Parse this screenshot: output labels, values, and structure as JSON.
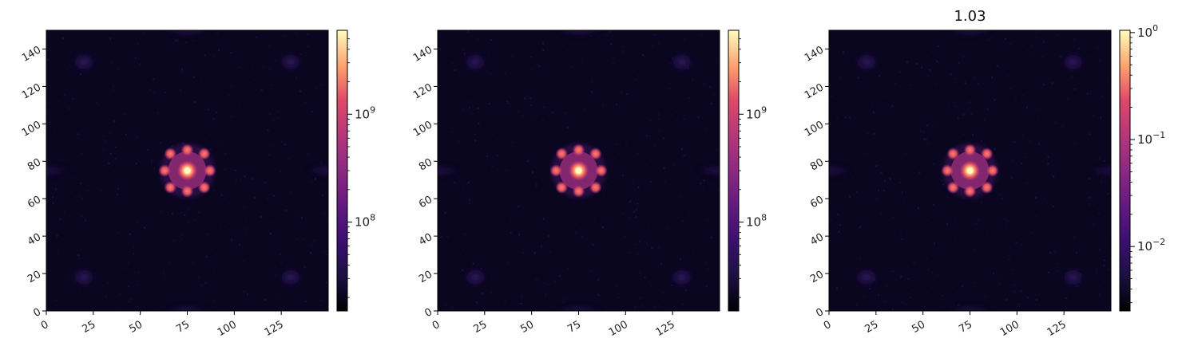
{
  "chart_data": [
    {
      "type": "heatmap",
      "title": "",
      "xlim": [
        0,
        150
      ],
      "ylim": [
        0,
        150
      ],
      "xticks": [
        0,
        25,
        50,
        75,
        100,
        125
      ],
      "xtick_labels": [
        "0",
        "25",
        "50",
        "75",
        "100",
        "125"
      ],
      "yticks": [
        0,
        20,
        40,
        60,
        80,
        100,
        120,
        140
      ],
      "ytick_labels": [
        "0",
        "20",
        "40",
        "60",
        "80",
        "100",
        "120",
        "140"
      ],
      "colormap": "magma",
      "colorbar": {
        "scale": "log",
        "range": [
          15000000,
          6000000000
        ],
        "major_ticks": [
          {
            "value": 100000000,
            "base": "10",
            "exp": "8"
          },
          {
            "value": 1000000000,
            "base": "10",
            "exp": "9"
          }
        ],
        "minor_ticks": [
          20000000,
          30000000,
          40000000,
          50000000,
          60000000,
          70000000,
          80000000,
          90000000,
          200000000,
          300000000,
          400000000,
          500000000,
          600000000,
          700000000,
          800000000,
          900000000,
          2000000000,
          3000000000,
          4000000000,
          5000000000
        ]
      },
      "features": {
        "center": [
          75,
          75
        ],
        "core_peak": "max",
        "ring_spots": [
          {
            "x": 66,
            "y": 84
          },
          {
            "x": 75,
            "y": 86
          },
          {
            "x": 84,
            "y": 84
          },
          {
            "x": 63,
            "y": 75
          },
          {
            "x": 87,
            "y": 75
          },
          {
            "x": 66,
            "y": 66
          },
          {
            "x": 75,
            "y": 64
          },
          {
            "x": 84,
            "y": 66
          }
        ],
        "outer_patches": [
          {
            "x": 20,
            "y": 133
          },
          {
            "x": 130,
            "y": 133
          },
          {
            "x": 20,
            "y": 18
          },
          {
            "x": 130,
            "y": 18
          }
        ]
      }
    },
    {
      "type": "heatmap",
      "title": "",
      "xlim": [
        0,
        150
      ],
      "ylim": [
        0,
        150
      ],
      "xticks": [
        0,
        25,
        50,
        75,
        100,
        125
      ],
      "xtick_labels": [
        "0",
        "25",
        "50",
        "75",
        "100",
        "125"
      ],
      "yticks": [
        0,
        20,
        40,
        60,
        80,
        100,
        120,
        140
      ],
      "ytick_labels": [
        "0",
        "20",
        "40",
        "60",
        "80",
        "100",
        "120",
        "140"
      ],
      "colormap": "magma",
      "colorbar": {
        "scale": "log",
        "range": [
          15000000,
          6000000000
        ],
        "major_ticks": [
          {
            "value": 100000000,
            "base": "10",
            "exp": "8"
          },
          {
            "value": 1000000000,
            "base": "10",
            "exp": "9"
          }
        ],
        "minor_ticks": [
          20000000,
          30000000,
          40000000,
          50000000,
          60000000,
          70000000,
          80000000,
          90000000,
          200000000,
          300000000,
          400000000,
          500000000,
          600000000,
          700000000,
          800000000,
          900000000,
          2000000000,
          3000000000,
          4000000000,
          5000000000
        ]
      },
      "features": {
        "center": [
          75,
          75
        ],
        "core_peak": "max",
        "ring_spots": [
          {
            "x": 66,
            "y": 84
          },
          {
            "x": 75,
            "y": 86
          },
          {
            "x": 84,
            "y": 84
          },
          {
            "x": 63,
            "y": 75
          },
          {
            "x": 87,
            "y": 75
          },
          {
            "x": 66,
            "y": 66
          },
          {
            "x": 75,
            "y": 64
          },
          {
            "x": 84,
            "y": 66
          }
        ],
        "outer_patches": [
          {
            "x": 20,
            "y": 133
          },
          {
            "x": 130,
            "y": 133
          },
          {
            "x": 20,
            "y": 18
          },
          {
            "x": 130,
            "y": 18
          }
        ]
      }
    },
    {
      "type": "heatmap",
      "title": "1.03",
      "xlim": [
        0,
        150
      ],
      "ylim": [
        0,
        150
      ],
      "xticks": [
        0,
        25,
        50,
        75,
        100,
        125
      ],
      "xtick_labels": [
        "0",
        "25",
        "50",
        "75",
        "100",
        "125"
      ],
      "yticks": [
        0,
        20,
        40,
        60,
        80,
        100,
        120,
        140
      ],
      "ytick_labels": [
        "0",
        "20",
        "40",
        "60",
        "80",
        "100",
        "120",
        "140"
      ],
      "colormap": "magma",
      "colorbar": {
        "scale": "log",
        "range": [
          0.0025,
          1.05
        ],
        "major_ticks": [
          {
            "value": 0.01,
            "base": "10",
            "exp": "−2"
          },
          {
            "value": 0.1,
            "base": "10",
            "exp": "−1"
          },
          {
            "value": 1,
            "base": "10",
            "exp": "0"
          }
        ],
        "minor_ticks": [
          0.003,
          0.004,
          0.005,
          0.006,
          0.007,
          0.008,
          0.009,
          0.02,
          0.03,
          0.04,
          0.05,
          0.06,
          0.07,
          0.08,
          0.09,
          0.2,
          0.3,
          0.4,
          0.5,
          0.6,
          0.7,
          0.8,
          0.9
        ]
      },
      "features": {
        "center": [
          75,
          75
        ],
        "core_peak": "max",
        "ring_spots": [
          {
            "x": 66,
            "y": 84
          },
          {
            "x": 75,
            "y": 86
          },
          {
            "x": 84,
            "y": 84
          },
          {
            "x": 63,
            "y": 75
          },
          {
            "x": 87,
            "y": 75
          },
          {
            "x": 66,
            "y": 66
          },
          {
            "x": 75,
            "y": 64
          },
          {
            "x": 84,
            "y": 66
          }
        ],
        "outer_patches": [
          {
            "x": 20,
            "y": 133
          },
          {
            "x": 130,
            "y": 133
          },
          {
            "x": 20,
            "y": 18
          },
          {
            "x": 130,
            "y": 18
          }
        ]
      }
    }
  ]
}
